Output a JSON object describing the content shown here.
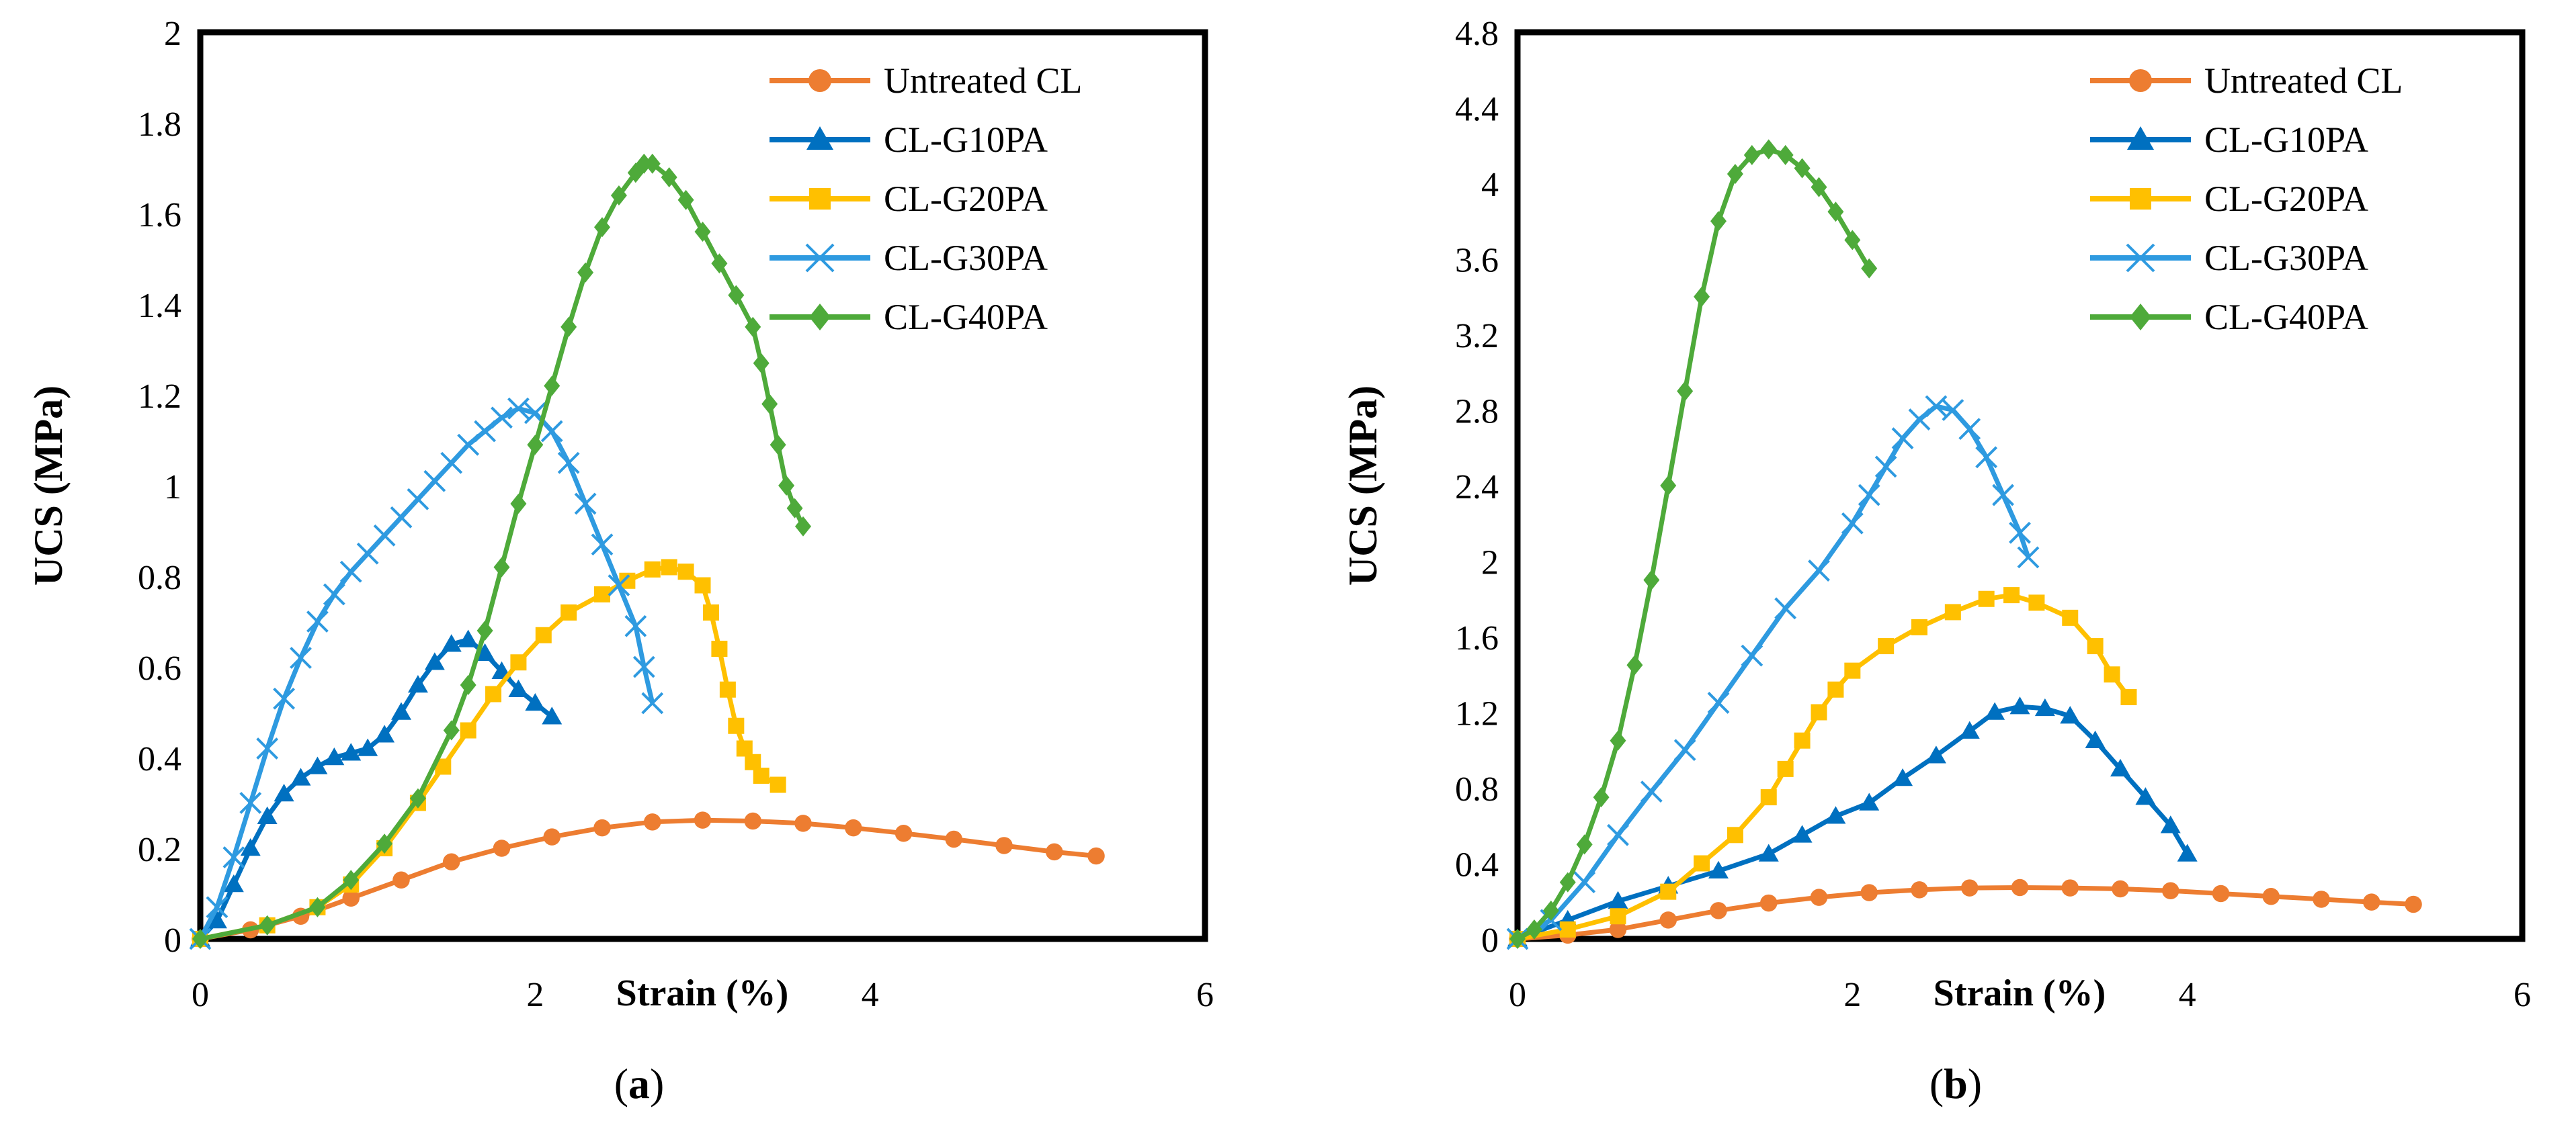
{
  "figure": {
    "panel_a_label": "a",
    "panel_b_label": "b"
  },
  "chart_data": [
    {
      "type": "line",
      "panel": "a",
      "xlabel": "Strain (%)",
      "ylabel": "UCS (MPa)",
      "xlim": [
        0,
        6
      ],
      "ylim": [
        0,
        2
      ],
      "xticks": [
        0,
        2,
        4,
        6
      ],
      "yticks": [
        0,
        0.2,
        0.4,
        0.6,
        0.8,
        1,
        1.2,
        1.4,
        1.6,
        1.8,
        2
      ],
      "ytick_labels": [
        "0",
        "0.2",
        "0.4",
        "0.6",
        "0.8",
        "1",
        "1.2",
        "1.4",
        "1.6",
        "1.8",
        "2"
      ],
      "grid": false,
      "legend_position": "top-right",
      "series": [
        {
          "name": "Untreated CL",
          "color": "#ED7D31",
          "marker": "circle",
          "points": [
            [
              0,
              0
            ],
            [
              0.3,
              0.02
            ],
            [
              0.6,
              0.05
            ],
            [
              0.9,
              0.09
            ],
            [
              1.2,
              0.13
            ],
            [
              1.5,
              0.17
            ],
            [
              1.8,
              0.2
            ],
            [
              2.1,
              0.225
            ],
            [
              2.4,
              0.245
            ],
            [
              2.7,
              0.258
            ],
            [
              3.0,
              0.262
            ],
            [
              3.3,
              0.26
            ],
            [
              3.6,
              0.255
            ],
            [
              3.9,
              0.245
            ],
            [
              4.2,
              0.233
            ],
            [
              4.5,
              0.22
            ],
            [
              4.8,
              0.206
            ],
            [
              5.1,
              0.192
            ],
            [
              5.35,
              0.183
            ]
          ]
        },
        {
          "name": "CL-G10PA",
          "color": "#0070C0",
          "marker": "triangle",
          "points": [
            [
              0,
              0
            ],
            [
              0.1,
              0.04
            ],
            [
              0.2,
              0.12
            ],
            [
              0.3,
              0.2
            ],
            [
              0.4,
              0.27
            ],
            [
              0.5,
              0.32
            ],
            [
              0.6,
              0.355
            ],
            [
              0.7,
              0.38
            ],
            [
              0.8,
              0.4
            ],
            [
              0.9,
              0.41
            ],
            [
              1.0,
              0.42
            ],
            [
              1.1,
              0.45
            ],
            [
              1.2,
              0.5
            ],
            [
              1.3,
              0.56
            ],
            [
              1.4,
              0.61
            ],
            [
              1.5,
              0.65
            ],
            [
              1.6,
              0.66
            ],
            [
              1.7,
              0.63
            ],
            [
              1.8,
              0.59
            ],
            [
              1.9,
              0.55
            ],
            [
              2.0,
              0.52
            ],
            [
              2.1,
              0.49
            ]
          ]
        },
        {
          "name": "CL-G20PA",
          "color": "#FFC000",
          "marker": "square",
          "points": [
            [
              0,
              0
            ],
            [
              0.4,
              0.03
            ],
            [
              0.7,
              0.07
            ],
            [
              0.9,
              0.12
            ],
            [
              1.1,
              0.2
            ],
            [
              1.3,
              0.3
            ],
            [
              1.45,
              0.38
            ],
            [
              1.6,
              0.46
            ],
            [
              1.75,
              0.54
            ],
            [
              1.9,
              0.61
            ],
            [
              2.05,
              0.67
            ],
            [
              2.2,
              0.72
            ],
            [
              2.4,
              0.76
            ],
            [
              2.55,
              0.79
            ],
            [
              2.7,
              0.815
            ],
            [
              2.8,
              0.82
            ],
            [
              2.9,
              0.81
            ],
            [
              3.0,
              0.78
            ],
            [
              3.05,
              0.72
            ],
            [
              3.1,
              0.64
            ],
            [
              3.15,
              0.55
            ],
            [
              3.2,
              0.47
            ],
            [
              3.25,
              0.42
            ],
            [
              3.3,
              0.39
            ],
            [
              3.35,
              0.36
            ],
            [
              3.45,
              0.34
            ]
          ]
        },
        {
          "name": "CL-G30PA",
          "color": "#2E9AE0",
          "marker": "cross",
          "points": [
            [
              0,
              0
            ],
            [
              0.1,
              0.07
            ],
            [
              0.2,
              0.18
            ],
            [
              0.3,
              0.3
            ],
            [
              0.4,
              0.42
            ],
            [
              0.5,
              0.53
            ],
            [
              0.6,
              0.62
            ],
            [
              0.7,
              0.7
            ],
            [
              0.8,
              0.76
            ],
            [
              0.9,
              0.81
            ],
            [
              1.0,
              0.85
            ],
            [
              1.1,
              0.89
            ],
            [
              1.2,
              0.93
            ],
            [
              1.3,
              0.97
            ],
            [
              1.4,
              1.01
            ],
            [
              1.5,
              1.05
            ],
            [
              1.6,
              1.09
            ],
            [
              1.7,
              1.12
            ],
            [
              1.8,
              1.15
            ],
            [
              1.9,
              1.17
            ],
            [
              2.0,
              1.16
            ],
            [
              2.1,
              1.12
            ],
            [
              2.2,
              1.05
            ],
            [
              2.3,
              0.96
            ],
            [
              2.4,
              0.87
            ],
            [
              2.5,
              0.78
            ],
            [
              2.6,
              0.69
            ],
            [
              2.65,
              0.6
            ],
            [
              2.7,
              0.52
            ]
          ]
        },
        {
          "name": "CL-G40PA",
          "color": "#4EAA3A",
          "marker": "diamond",
          "points": [
            [
              0,
              0
            ],
            [
              0.4,
              0.03
            ],
            [
              0.7,
              0.07
            ],
            [
              0.9,
              0.13
            ],
            [
              1.1,
              0.21
            ],
            [
              1.3,
              0.31
            ],
            [
              1.5,
              0.46
            ],
            [
              1.6,
              0.56
            ],
            [
              1.7,
              0.68
            ],
            [
              1.8,
              0.82
            ],
            [
              1.9,
              0.96
            ],
            [
              2.0,
              1.09
            ],
            [
              2.1,
              1.22
            ],
            [
              2.2,
              1.35
            ],
            [
              2.3,
              1.47
            ],
            [
              2.4,
              1.57
            ],
            [
              2.5,
              1.64
            ],
            [
              2.6,
              1.69
            ],
            [
              2.65,
              1.71
            ],
            [
              2.7,
              1.71
            ],
            [
              2.8,
              1.68
            ],
            [
              2.9,
              1.63
            ],
            [
              3.0,
              1.56
            ],
            [
              3.1,
              1.49
            ],
            [
              3.2,
              1.42
            ],
            [
              3.3,
              1.35
            ],
            [
              3.35,
              1.27
            ],
            [
              3.4,
              1.18
            ],
            [
              3.45,
              1.09
            ],
            [
              3.5,
              1.0
            ],
            [
              3.55,
              0.95
            ],
            [
              3.6,
              0.91
            ]
          ]
        }
      ]
    },
    {
      "type": "line",
      "panel": "b",
      "xlabel": "Strain (%)",
      "ylabel": "UCS (MPa)",
      "xlim": [
        0,
        6
      ],
      "ylim": [
        0,
        4.8
      ],
      "xticks": [
        0,
        2,
        4,
        6
      ],
      "yticks": [
        0,
        0.4,
        0.8,
        1.2,
        1.6,
        2,
        2.4,
        2.8,
        3.2,
        3.6,
        4,
        4.4,
        4.8
      ],
      "ytick_labels": [
        "0",
        "0.4",
        "0.8",
        "1.2",
        "1.6",
        "2",
        "2.4",
        "2.8",
        "3.2",
        "3.6",
        "4",
        "4.4",
        "4.8"
      ],
      "grid": false,
      "legend_position": "top-right",
      "series": [
        {
          "name": "Untreated CL",
          "color": "#ED7D31",
          "marker": "circle",
          "points": [
            [
              0,
              0
            ],
            [
              0.3,
              0.02
            ],
            [
              0.6,
              0.05
            ],
            [
              0.9,
              0.1
            ],
            [
              1.2,
              0.15
            ],
            [
              1.5,
              0.19
            ],
            [
              1.8,
              0.22
            ],
            [
              2.1,
              0.245
            ],
            [
              2.4,
              0.26
            ],
            [
              2.7,
              0.27
            ],
            [
              3.0,
              0.272
            ],
            [
              3.3,
              0.27
            ],
            [
              3.6,
              0.265
            ],
            [
              3.9,
              0.255
            ],
            [
              4.2,
              0.24
            ],
            [
              4.5,
              0.225
            ],
            [
              4.8,
              0.21
            ],
            [
              5.1,
              0.195
            ],
            [
              5.35,
              0.183
            ]
          ]
        },
        {
          "name": "CL-G10PA",
          "color": "#0070C0",
          "marker": "triangle",
          "points": [
            [
              0,
              0
            ],
            [
              0.3,
              0.1
            ],
            [
              0.6,
              0.2
            ],
            [
              0.9,
              0.28
            ],
            [
              1.2,
              0.36
            ],
            [
              1.5,
              0.45
            ],
            [
              1.7,
              0.55
            ],
            [
              1.9,
              0.65
            ],
            [
              2.1,
              0.72
            ],
            [
              2.3,
              0.85
            ],
            [
              2.5,
              0.97
            ],
            [
              2.7,
              1.1
            ],
            [
              2.85,
              1.2
            ],
            [
              3.0,
              1.23
            ],
            [
              3.15,
              1.22
            ],
            [
              3.3,
              1.18
            ],
            [
              3.45,
              1.05
            ],
            [
              3.6,
              0.9
            ],
            [
              3.75,
              0.75
            ],
            [
              3.9,
              0.6
            ],
            [
              4.0,
              0.45
            ]
          ]
        },
        {
          "name": "CL-G20PA",
          "color": "#FFC000",
          "marker": "square",
          "points": [
            [
              0,
              0
            ],
            [
              0.3,
              0.05
            ],
            [
              0.6,
              0.12
            ],
            [
              0.9,
              0.25
            ],
            [
              1.1,
              0.4
            ],
            [
              1.3,
              0.55
            ],
            [
              1.5,
              0.75
            ],
            [
              1.6,
              0.9
            ],
            [
              1.7,
              1.05
            ],
            [
              1.8,
              1.2
            ],
            [
              1.9,
              1.32
            ],
            [
              2.0,
              1.42
            ],
            [
              2.2,
              1.55
            ],
            [
              2.4,
              1.65
            ],
            [
              2.6,
              1.73
            ],
            [
              2.8,
              1.8
            ],
            [
              2.95,
              1.82
            ],
            [
              3.1,
              1.78
            ],
            [
              3.3,
              1.7
            ],
            [
              3.45,
              1.55
            ],
            [
              3.55,
              1.4
            ],
            [
              3.65,
              1.28
            ]
          ]
        },
        {
          "name": "CL-G30PA",
          "color": "#2E9AE0",
          "marker": "cross",
          "points": [
            [
              0,
              0
            ],
            [
              0.2,
              0.1
            ],
            [
              0.4,
              0.3
            ],
            [
              0.6,
              0.55
            ],
            [
              0.8,
              0.78
            ],
            [
              1.0,
              1.0
            ],
            [
              1.2,
              1.25
            ],
            [
              1.4,
              1.5
            ],
            [
              1.6,
              1.75
            ],
            [
              1.8,
              1.95
            ],
            [
              2.0,
              2.2
            ],
            [
              2.1,
              2.35
            ],
            [
              2.2,
              2.5
            ],
            [
              2.3,
              2.65
            ],
            [
              2.4,
              2.75
            ],
            [
              2.5,
              2.82
            ],
            [
              2.6,
              2.8
            ],
            [
              2.7,
              2.7
            ],
            [
              2.8,
              2.55
            ],
            [
              2.9,
              2.35
            ],
            [
              3.0,
              2.15
            ],
            [
              3.05,
              2.02
            ]
          ]
        },
        {
          "name": "CL-G40PA",
          "color": "#4EAA3A",
          "marker": "diamond",
          "points": [
            [
              0,
              0
            ],
            [
              0.1,
              0.05
            ],
            [
              0.2,
              0.15
            ],
            [
              0.3,
              0.3
            ],
            [
              0.4,
              0.5
            ],
            [
              0.5,
              0.75
            ],
            [
              0.6,
              1.05
            ],
            [
              0.7,
              1.45
            ],
            [
              0.8,
              1.9
            ],
            [
              0.9,
              2.4
            ],
            [
              1.0,
              2.9
            ],
            [
              1.1,
              3.4
            ],
            [
              1.2,
              3.8
            ],
            [
              1.3,
              4.05
            ],
            [
              1.4,
              4.15
            ],
            [
              1.5,
              4.18
            ],
            [
              1.6,
              4.15
            ],
            [
              1.7,
              4.08
            ],
            [
              1.8,
              3.98
            ],
            [
              1.9,
              3.85
            ],
            [
              2.0,
              3.7
            ],
            [
              2.1,
              3.55
            ]
          ]
        }
      ]
    }
  ]
}
